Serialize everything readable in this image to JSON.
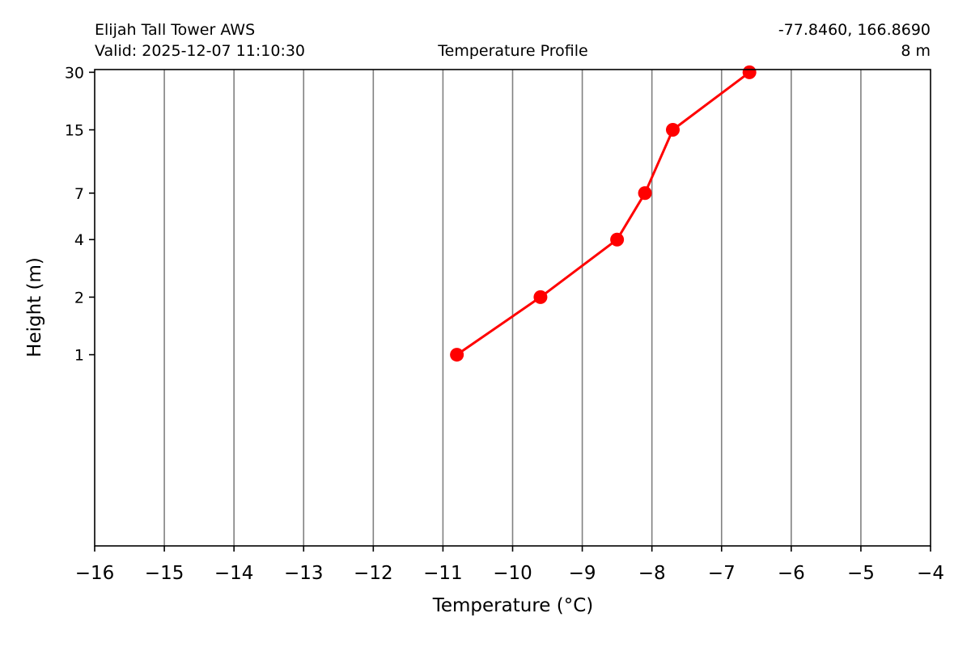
{
  "header": {
    "station": "Elijah Tall Tower AWS",
    "valid": "Valid: 2025-12-07 11:10:30",
    "title": "Temperature Profile",
    "coords": "-77.8460, 166.8690",
    "elevation": "8 m"
  },
  "colors": {
    "series": "#ff0000",
    "grid": "#808080",
    "axis": "#000000"
  },
  "chart_data": {
    "type": "line",
    "title": "Temperature Profile",
    "xlabel": "Temperature (°C)",
    "ylabel": "Height (m)",
    "xlim": [
      -16,
      -4
    ],
    "ylim": [
      0,
      31
    ],
    "x_ticks": [
      -16,
      -15,
      -14,
      -13,
      -12,
      -11,
      -10,
      -9,
      -8,
      -7,
      -6,
      -5,
      -4
    ],
    "x_tick_labels": [
      "−16",
      "−15",
      "−14",
      "−13",
      "−12",
      "−11",
      "−10",
      "−9",
      "−8",
      "−7",
      "−6",
      "−5",
      "−4"
    ],
    "y_ticks": [
      1,
      2,
      4,
      7,
      15,
      30
    ],
    "y_tick_labels": [
      "1",
      "2",
      "4",
      "7",
      "15",
      "30"
    ],
    "y_scale": "symlog",
    "grid": "vertical",
    "series": [
      {
        "x": [
          -10.8,
          -9.6,
          -8.5,
          -8.1,
          -7.7,
          -6.6
        ],
        "y": [
          1,
          2,
          4,
          7,
          15,
          30
        ]
      }
    ]
  }
}
